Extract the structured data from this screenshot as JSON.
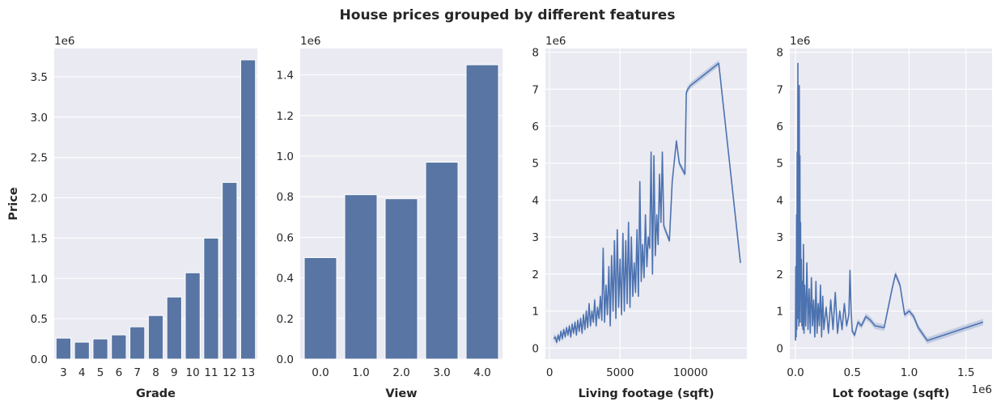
{
  "figure": {
    "title": "House prices grouped by different features"
  },
  "chart_data": [
    {
      "type": "bar",
      "xlabel": "Grade",
      "ylabel": "Price",
      "offset_text": "1e6",
      "ylim": [
        0,
        3.85
      ],
      "yticks": [
        0.0,
        0.5,
        1.0,
        1.5,
        2.0,
        2.5,
        3.0,
        3.5
      ],
      "ytick_labels": [
        "0.0",
        "0.5",
        "1.0",
        "1.5",
        "2.0",
        "2.5",
        "3.0",
        "3.5"
      ],
      "categories": [
        "3",
        "4",
        "5",
        "6",
        "7",
        "8",
        "9",
        "10",
        "11",
        "12",
        "13"
      ],
      "values": [
        0.26,
        0.21,
        0.25,
        0.3,
        0.4,
        0.54,
        0.77,
        1.07,
        1.5,
        2.19,
        3.71
      ],
      "grid": true
    },
    {
      "type": "bar",
      "xlabel": "View",
      "ylabel": "",
      "offset_text": "1e6",
      "ylim": [
        0,
        1.53
      ],
      "yticks": [
        0.0,
        0.2,
        0.4,
        0.6,
        0.8,
        1.0,
        1.2,
        1.4
      ],
      "ytick_labels": [
        "0.0",
        "0.2",
        "0.4",
        "0.6",
        "0.8",
        "1.0",
        "1.2",
        "1.4"
      ],
      "categories": [
        "0.0",
        "1.0",
        "2.0",
        "3.0",
        "4.0"
      ],
      "values": [
        0.5,
        0.81,
        0.79,
        0.97,
        1.45
      ],
      "grid": true
    },
    {
      "type": "line",
      "xlabel": "Living footage (sqft)",
      "ylabel": "",
      "offset_text": "1e6",
      "xlim": [
        -300,
        14000
      ],
      "ylim": [
        -0.3,
        8.1
      ],
      "xticks": [
        0,
        5000,
        10000
      ],
      "xtick_labels": [
        "0",
        "5000",
        "10000"
      ],
      "yticks": [
        0,
        1,
        2,
        3,
        4,
        5,
        6,
        7,
        8
      ],
      "ytick_labels": [
        "0",
        "1",
        "2",
        "3",
        "4",
        "5",
        "6",
        "7",
        "8"
      ],
      "series": [
        {
          "x": [
            290,
            400,
            500,
            600,
            700,
            800,
            900,
            1000,
            1100,
            1200,
            1300,
            1400,
            1500,
            1600,
            1700,
            1800,
            1900,
            2000,
            2100,
            2200,
            2300,
            2400,
            2500,
            2600,
            2700,
            2800,
            2900,
            3000,
            3100,
            3200,
            3300,
            3400,
            3500,
            3600,
            3700,
            3800,
            3900,
            4000,
            4100,
            4200,
            4300,
            4400,
            4500,
            4600,
            4700,
            4800,
            4900,
            5000,
            5100,
            5200,
            5300,
            5400,
            5500,
            5600,
            5700,
            5800,
            5900,
            6000,
            6100,
            6200,
            6300,
            6400,
            6500,
            6600,
            6700,
            6800,
            6900,
            7000,
            7100,
            7200,
            7300,
            7400,
            7500,
            7600,
            7700,
            7800,
            7900,
            8000,
            8100,
            8500,
            8700,
            9000,
            9200,
            9600,
            9700,
            9800,
            9900,
            10000,
            12000,
            13540
          ],
          "y": [
            0.25,
            0.3,
            0.15,
            0.35,
            0.2,
            0.45,
            0.25,
            0.5,
            0.3,
            0.55,
            0.35,
            0.6,
            0.3,
            0.65,
            0.4,
            0.7,
            0.35,
            0.75,
            0.45,
            0.8,
            0.4,
            0.9,
            0.5,
            1.0,
            0.55,
            1.2,
            0.6,
            1.0,
            0.7,
            1.3,
            0.6,
            1.1,
            0.8,
            1.4,
            0.75,
            2.7,
            0.7,
            1.7,
            0.9,
            2.2,
            0.6,
            2.5,
            1.0,
            2.9,
            0.8,
            3.2,
            1.1,
            2.4,
            0.9,
            3.1,
            1.0,
            2.9,
            1.2,
            3.4,
            1.1,
            3.0,
            1.4,
            2.3,
            1.5,
            3.2,
            1.4,
            4.5,
            1.8,
            2.8,
            1.9,
            3.6,
            2.2,
            3.0,
            2.7,
            5.3,
            2.0,
            5.2,
            2.5,
            3.6,
            2.8,
            4.7,
            3.4,
            5.3,
            3.3,
            2.9,
            4.5,
            5.6,
            5.0,
            4.7,
            6.9,
            7.0,
            7.05,
            7.1,
            7.7,
            2.3
          ]
        }
      ],
      "grid": true
    },
    {
      "type": "line",
      "xlabel": "Lot footage (sqft)",
      "ylabel": "",
      "offset_text": "1e6",
      "x_offset_text": "1e6",
      "xlim": [
        -0.05,
        1.73
      ],
      "ylim": [
        -0.3,
        8.1
      ],
      "xticks": [
        0.0,
        0.5,
        1.0,
        1.5
      ],
      "xtick_labels": [
        "0.0",
        "0.5",
        "1.0",
        "1.5"
      ],
      "yticks": [
        0,
        1,
        2,
        3,
        4,
        5,
        6,
        7,
        8
      ],
      "ytick_labels": [
        "0",
        "1",
        "2",
        "3",
        "4",
        "5",
        "6",
        "7",
        "8"
      ],
      "series": [
        {
          "x": [
            0.0,
            0.003,
            0.006,
            0.009,
            0.012,
            0.015,
            0.018,
            0.021,
            0.024,
            0.027,
            0.03,
            0.033,
            0.036,
            0.039,
            0.042,
            0.045,
            0.048,
            0.052,
            0.056,
            0.06,
            0.065,
            0.07,
            0.075,
            0.08,
            0.09,
            0.1,
            0.11,
            0.12,
            0.13,
            0.14,
            0.15,
            0.16,
            0.17,
            0.18,
            0.19,
            0.2,
            0.21,
            0.22,
            0.23,
            0.24,
            0.25,
            0.27,
            0.29,
            0.31,
            0.33,
            0.35,
            0.37,
            0.39,
            0.41,
            0.43,
            0.45,
            0.47,
            0.48,
            0.49,
            0.5,
            0.52,
            0.55,
            0.58,
            0.62,
            0.66,
            0.7,
            0.78,
            0.85,
            0.88,
            0.92,
            0.96,
            1.0,
            1.04,
            1.08,
            1.16,
            1.65
          ],
          "y": [
            0.2,
            2.2,
            0.3,
            3.6,
            0.5,
            5.3,
            0.8,
            7.7,
            1.2,
            4.0,
            0.6,
            7.1,
            1.0,
            5.2,
            0.7,
            3.4,
            1.5,
            2.4,
            0.6,
            1.8,
            0.5,
            2.8,
            0.4,
            1.7,
            0.6,
            2.3,
            0.5,
            1.6,
            0.4,
            1.9,
            0.6,
            1.3,
            0.3,
            1.8,
            0.4,
            1.2,
            0.6,
            1.7,
            0.3,
            1.4,
            0.5,
            1.1,
            0.4,
            1.3,
            0.5,
            1.5,
            0.4,
            1.0,
            0.5,
            1.2,
            0.6,
            0.9,
            2.1,
            1.0,
            0.45,
            0.35,
            0.7,
            0.6,
            0.85,
            0.75,
            0.6,
            0.55,
            1.6,
            2.0,
            1.7,
            0.9,
            1.0,
            0.85,
            0.55,
            0.2,
            0.7
          ]
        }
      ],
      "grid": true
    }
  ]
}
